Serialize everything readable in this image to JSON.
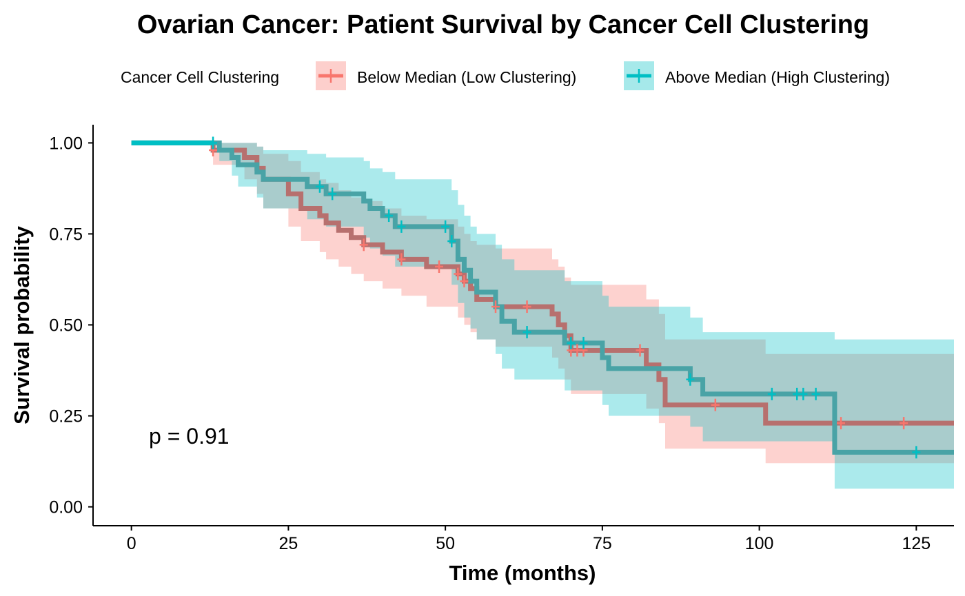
{
  "chart_data": {
    "type": "line",
    "subtype": "kaplan-meier",
    "title": "Ovarian Cancer: Patient Survival by Cancer Cell Clustering",
    "xlabel": "Time (months)",
    "ylabel": "Survival probability",
    "xlim": [
      -6,
      131
    ],
    "ylim": [
      -0.05,
      1.05
    ],
    "x_ticks": [
      0,
      25,
      50,
      75,
      100,
      125
    ],
    "y_ticks": [
      0.0,
      0.25,
      0.5,
      0.75,
      1.0
    ],
    "x_tick_labels": [
      "0",
      "25",
      "50",
      "75",
      "100",
      "125"
    ],
    "y_tick_labels": [
      "0.00",
      "0.25",
      "0.50",
      "0.75",
      "1.00"
    ],
    "grid": false,
    "legend": {
      "title": "Cancer Cell Clustering",
      "placement": "top"
    },
    "annotation": "p = 0.91",
    "series": [
      {
        "name": "Below Median (Low Clustering)",
        "color": "#F8766D",
        "line_color": "#B7706E",
        "steps": [
          [
            0,
            1.0
          ],
          [
            13,
            0.98
          ],
          [
            18,
            0.96
          ],
          [
            20,
            0.93
          ],
          [
            21,
            0.9
          ],
          [
            25,
            0.86
          ],
          [
            27,
            0.82
          ],
          [
            30,
            0.8
          ],
          [
            31,
            0.78
          ],
          [
            33,
            0.76
          ],
          [
            35,
            0.74
          ],
          [
            37,
            0.72
          ],
          [
            40,
            0.7
          ],
          [
            43,
            0.68
          ],
          [
            47,
            0.66
          ],
          [
            52,
            0.64
          ],
          [
            53,
            0.62
          ],
          [
            54,
            0.6
          ],
          [
            55,
            0.57
          ],
          [
            58,
            0.55
          ],
          [
            67,
            0.53
          ],
          [
            68,
            0.5
          ],
          [
            69,
            0.47
          ],
          [
            70,
            0.43
          ],
          [
            82,
            0.39
          ],
          [
            84,
            0.35
          ],
          [
            85,
            0.28
          ],
          [
            101,
            0.23
          ]
        ],
        "end_time": 131,
        "ci_lower": [
          [
            0,
            1.0
          ],
          [
            13,
            0.94
          ],
          [
            18,
            0.9
          ],
          [
            20,
            0.86
          ],
          [
            21,
            0.82
          ],
          [
            25,
            0.77
          ],
          [
            27,
            0.73
          ],
          [
            30,
            0.7
          ],
          [
            31,
            0.68
          ],
          [
            33,
            0.66
          ],
          [
            35,
            0.64
          ],
          [
            37,
            0.62
          ],
          [
            40,
            0.6
          ],
          [
            43,
            0.58
          ],
          [
            47,
            0.55
          ],
          [
            52,
            0.52
          ],
          [
            53,
            0.5
          ],
          [
            54,
            0.48
          ],
          [
            55,
            0.46
          ],
          [
            58,
            0.44
          ],
          [
            67,
            0.41
          ],
          [
            68,
            0.38
          ],
          [
            69,
            0.35
          ],
          [
            70,
            0.31
          ],
          [
            82,
            0.27
          ],
          [
            84,
            0.23
          ],
          [
            85,
            0.16
          ],
          [
            101,
            0.12
          ]
        ],
        "ci_upper": [
          [
            0,
            1.0
          ],
          [
            13,
            1.0
          ],
          [
            18,
            1.0
          ],
          [
            20,
            0.99
          ],
          [
            21,
            0.97
          ],
          [
            25,
            0.95
          ],
          [
            27,
            0.92
          ],
          [
            30,
            0.9
          ],
          [
            31,
            0.89
          ],
          [
            33,
            0.87
          ],
          [
            35,
            0.85
          ],
          [
            37,
            0.84
          ],
          [
            40,
            0.82
          ],
          [
            43,
            0.8
          ],
          [
            47,
            0.79
          ],
          [
            52,
            0.77
          ],
          [
            53,
            0.75
          ],
          [
            54,
            0.73
          ],
          [
            55,
            0.72
          ],
          [
            58,
            0.71
          ],
          [
            67,
            0.68
          ],
          [
            68,
            0.66
          ],
          [
            69,
            0.63
          ],
          [
            70,
            0.61
          ],
          [
            82,
            0.57
          ],
          [
            84,
            0.53
          ],
          [
            85,
            0.46
          ],
          [
            101,
            0.42
          ]
        ],
        "censor_times": [
          13,
          37,
          43,
          49,
          52,
          53,
          58,
          63,
          70,
          71,
          72,
          81,
          93,
          113,
          123
        ]
      },
      {
        "name": "Above Median (High Clustering)",
        "color": "#00BFC4",
        "line_color": "#49A3A6",
        "steps": [
          [
            0,
            1.0
          ],
          [
            14,
            0.98
          ],
          [
            16,
            0.96
          ],
          [
            17,
            0.94
          ],
          [
            20,
            0.92
          ],
          [
            21,
            0.9
          ],
          [
            28,
            0.88
          ],
          [
            31,
            0.86
          ],
          [
            37,
            0.84
          ],
          [
            38,
            0.82
          ],
          [
            40,
            0.8
          ],
          [
            42,
            0.77
          ],
          [
            51,
            0.73
          ],
          [
            52,
            0.68
          ],
          [
            53,
            0.65
          ],
          [
            54,
            0.62
          ],
          [
            55,
            0.59
          ],
          [
            58,
            0.55
          ],
          [
            59,
            0.51
          ],
          [
            61,
            0.48
          ],
          [
            69,
            0.45
          ],
          [
            75,
            0.41
          ],
          [
            76,
            0.38
          ],
          [
            89,
            0.35
          ],
          [
            91,
            0.31
          ],
          [
            112,
            0.15
          ]
        ],
        "end_time": 131,
        "ci_lower": [
          [
            0,
            1.0
          ],
          [
            14,
            0.95
          ],
          [
            16,
            0.91
          ],
          [
            17,
            0.88
          ],
          [
            20,
            0.85
          ],
          [
            21,
            0.82
          ],
          [
            28,
            0.79
          ],
          [
            31,
            0.77
          ],
          [
            37,
            0.74
          ],
          [
            38,
            0.71
          ],
          [
            40,
            0.69
          ],
          [
            42,
            0.66
          ],
          [
            51,
            0.61
          ],
          [
            52,
            0.56
          ],
          [
            53,
            0.52
          ],
          [
            54,
            0.49
          ],
          [
            55,
            0.46
          ],
          [
            58,
            0.42
          ],
          [
            59,
            0.38
          ],
          [
            61,
            0.35
          ],
          [
            69,
            0.32
          ],
          [
            75,
            0.28
          ],
          [
            76,
            0.25
          ],
          [
            89,
            0.22
          ],
          [
            91,
            0.18
          ],
          [
            112,
            0.05
          ]
        ],
        "ci_upper": [
          [
            0,
            1.0
          ],
          [
            14,
            1.0
          ],
          [
            16,
            1.0
          ],
          [
            17,
            1.0
          ],
          [
            20,
            0.99
          ],
          [
            21,
            0.98
          ],
          [
            28,
            0.97
          ],
          [
            31,
            0.96
          ],
          [
            37,
            0.95
          ],
          [
            38,
            0.93
          ],
          [
            40,
            0.92
          ],
          [
            42,
            0.9
          ],
          [
            51,
            0.87
          ],
          [
            52,
            0.83
          ],
          [
            53,
            0.8
          ],
          [
            54,
            0.77
          ],
          [
            55,
            0.75
          ],
          [
            58,
            0.72
          ],
          [
            59,
            0.68
          ],
          [
            61,
            0.65
          ],
          [
            69,
            0.62
          ],
          [
            75,
            0.58
          ],
          [
            76,
            0.55
          ],
          [
            89,
            0.52
          ],
          [
            91,
            0.48
          ],
          [
            112,
            0.46
          ]
        ],
        "censor_times": [
          13,
          30,
          32,
          41,
          43,
          50,
          51,
          63,
          70,
          72,
          89,
          102,
          106,
          107,
          109,
          125
        ]
      }
    ]
  }
}
